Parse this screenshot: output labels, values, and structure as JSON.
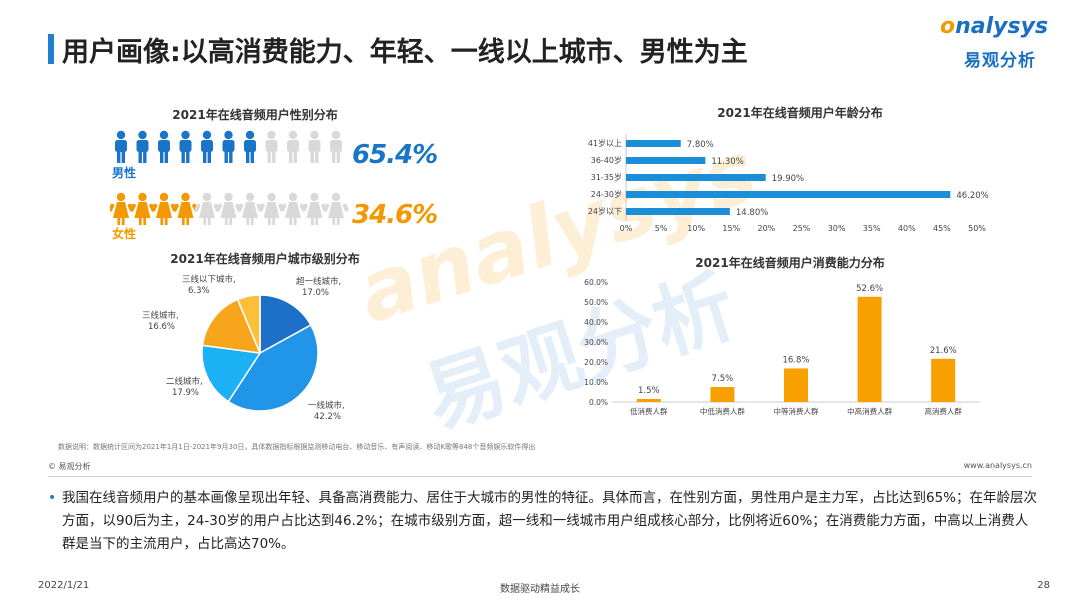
{
  "header": {
    "title": "用户画像:以高消费能力、年轻、一线以上城市、男性为主"
  },
  "logo": {
    "word_o": "o",
    "word_rest": "nalysys",
    "cn": "易观分析"
  },
  "colors": {
    "male": "#1a75c9",
    "female": "#f39800",
    "inactive": "#d9d9d9",
    "bar_blue": "#1a8fd8",
    "bar_orange": "#f7a000",
    "title_bar": "#1f7ecf"
  },
  "chart_data": [
    {
      "id": "gender",
      "type": "pictogram",
      "title": "2021年在线音频用户性别分布",
      "series": [
        {
          "name": "男性",
          "value": 65.4,
          "label": "65.4%",
          "icon": "male-person-icon",
          "filled": 7,
          "total": 11
        },
        {
          "name": "女性",
          "value": 34.6,
          "label": "34.6%",
          "icon": "female-person-icon",
          "filled": 4,
          "total": 11
        }
      ]
    },
    {
      "id": "age",
      "type": "bar",
      "orientation": "horizontal",
      "title": "2021年在线音频用户年龄分布",
      "categories": [
        "41岁以上",
        "36-40岁",
        "31-35岁",
        "24-30岁",
        "24岁以下"
      ],
      "values": [
        7.8,
        11.3,
        19.9,
        46.2,
        14.8
      ],
      "value_labels": [
        "7.80%",
        "11.30%",
        "19.90%",
        "46.20%",
        "14.80%"
      ],
      "xlim": [
        0,
        50
      ],
      "xticks": [
        "0%",
        "5%",
        "10%",
        "15%",
        "20%",
        "25%",
        "30%",
        "35%",
        "40%",
        "45%",
        "50%"
      ]
    },
    {
      "id": "city",
      "type": "pie",
      "title": "2021年在线音频用户城市级别分布",
      "slices": [
        {
          "name": "超一线城市,",
          "value": 17.0,
          "label": "17.0%",
          "color": "#1e6fc8"
        },
        {
          "name": "一线城市,",
          "value": 42.2,
          "label": "42.2%",
          "color": "#2196e8"
        },
        {
          "name": "二线城市,",
          "value": 17.9,
          "label": "17.9%",
          "color": "#1cb0f5"
        },
        {
          "name": "三线城市,",
          "value": 16.6,
          "label": "16.6%",
          "color": "#f7a51c"
        },
        {
          "name": "三线以下城市,",
          "value": 6.3,
          "label": "6.3%",
          "color": "#fbc03a"
        }
      ]
    },
    {
      "id": "consumption",
      "type": "bar",
      "orientation": "vertical",
      "title": "2021年在线音频用户消费能力分布",
      "categories": [
        "低消费人群",
        "中低消费人群",
        "中等消费人群",
        "中高消费人群",
        "高消费人群"
      ],
      "values": [
        1.5,
        7.5,
        16.8,
        52.6,
        21.6
      ],
      "value_labels": [
        "1.5%",
        "7.5%",
        "16.8%",
        "52.6%",
        "21.6%"
      ],
      "ylim": [
        0,
        60
      ],
      "yticks": [
        "0.0%",
        "10.0%",
        "20.0%",
        "30.0%",
        "40.0%",
        "50.0%",
        "60.0%"
      ]
    }
  ],
  "source_note": "数据说明：数据统计区间为2021年1月1日-2021年9月30日，具体数据指标根据监测移动电台、移动音乐、有声阅读、移动K歌等848个音频娱乐软件得出",
  "copyright": "© 易观分析",
  "website": "www.analysys.cn",
  "summary": "我国在线音频用户的基本画像呈现出年轻、具备高消费能力、居住于大城市的男性的特征。具体而言，在性别方面，男性用户是主力军，占比达到65%；在年龄层次方面，以90后为主，24-30岁的用户占比达到46.2%；在城市级别方面，超一线和一线城市用户组成核心部分，比例将近60%；在消费能力方面，中高以上消费人群是当下的主流用户，占比高达70%。",
  "watermark": {
    "word": "analysys",
    "cn": "易观分析"
  },
  "footer": {
    "date": "2022/1/21",
    "slogan": "数据驱动精益成长",
    "page": "28"
  }
}
